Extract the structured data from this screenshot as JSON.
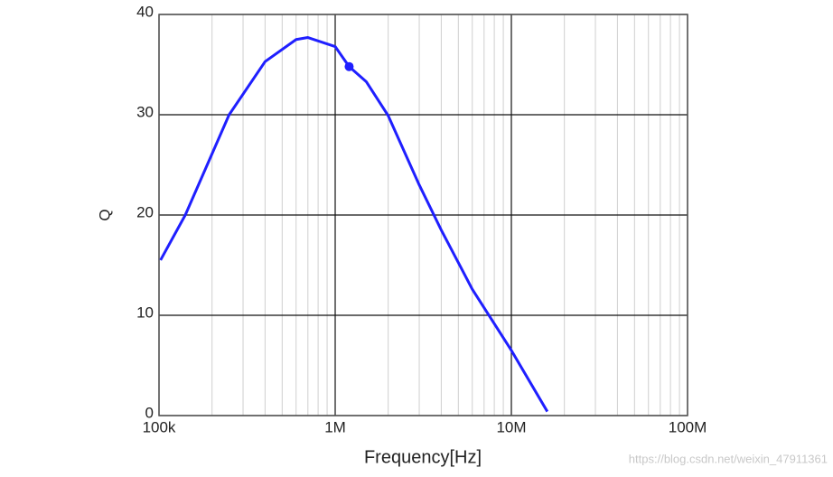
{
  "chart_data": {
    "type": "line",
    "x_label": "Frequency[Hz]",
    "y_label": "Q",
    "watermark": "https://blog.csdn.net/weixin_47911361",
    "x": [
      102000,
      141000,
      250000,
      400000,
      600000,
      700000,
      1000000,
      1200000,
      1500000,
      2000000,
      3000000,
      4000000,
      6000000,
      10000000,
      16000000
    ],
    "series": [
      {
        "color": "#1f1fff",
        "values": [
          15.5,
          20,
          30,
          35.3,
          37.5,
          37.7,
          36.8,
          34.8,
          33.3,
          29.9,
          23,
          18.5,
          12.6,
          6.5,
          0.4
        ]
      }
    ],
    "marker": {
      "x": 1200000,
      "y": 34.8
    },
    "xscale": "log",
    "xlim": [
      100000,
      100000000
    ],
    "xticks": [
      {
        "value": 100000,
        "label": "100k"
      },
      {
        "value": 1000000,
        "label": "1M"
      },
      {
        "value": 10000000,
        "label": "10M"
      },
      {
        "value": 100000000,
        "label": "100M"
      }
    ],
    "xminorticks": [
      200000,
      300000,
      400000,
      500000,
      600000,
      700000,
      800000,
      900000,
      2000000,
      3000000,
      4000000,
      5000000,
      6000000,
      7000000,
      8000000,
      9000000,
      20000000,
      30000000,
      40000000,
      50000000,
      60000000,
      70000000,
      80000000,
      90000000
    ],
    "ylim": [
      0,
      40
    ],
    "yticks": [
      0,
      10,
      20,
      30,
      40
    ],
    "grid": true
  }
}
